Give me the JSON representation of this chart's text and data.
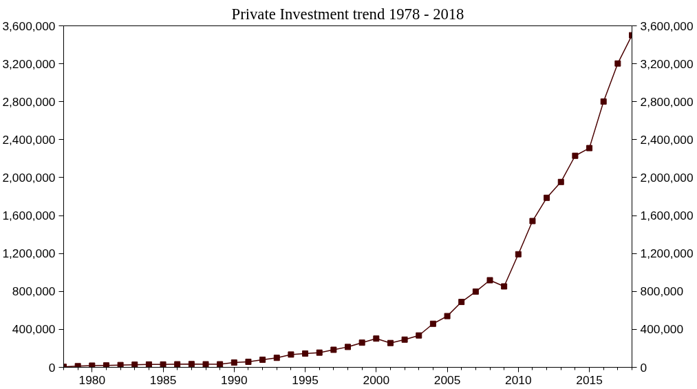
{
  "chart_data": {
    "type": "line",
    "title": "Private Investment trend 1978 - 2018",
    "x": [
      1978,
      1979,
      1980,
      1981,
      1982,
      1983,
      1984,
      1985,
      1986,
      1987,
      1988,
      1989,
      1990,
      1991,
      1992,
      1993,
      1994,
      1995,
      1996,
      1997,
      1998,
      1999,
      2000,
      2001,
      2002,
      2003,
      2004,
      2005,
      2006,
      2007,
      2008,
      2009,
      2010,
      2011,
      2012,
      2013,
      2014,
      2015,
      2016,
      2017,
      2018
    ],
    "series": [
      {
        "color": "#4a0000",
        "values": [
          5000,
          12000,
          18000,
          20000,
          24000,
          28000,
          30000,
          30000,
          32000,
          34000,
          32000,
          32000,
          50000,
          58000,
          80000,
          100000,
          135000,
          145000,
          155000,
          185000,
          215000,
          260000,
          303000,
          256000,
          292000,
          336000,
          459000,
          540000,
          689000,
          798000,
          918000,
          853000,
          1192000,
          1542000,
          1787000,
          1954000,
          2230000,
          2311000,
          2802000,
          3203000,
          3501000
        ]
      }
    ],
    "xlim": [
      1978,
      2018
    ],
    "xticks": [
      1980,
      1985,
      1990,
      1995,
      2000,
      2005,
      2010,
      2015
    ],
    "ylim": [
      0,
      3600000
    ],
    "yticks": [
      {
        "value": 0,
        "label": "0"
      },
      {
        "value": 400000,
        "label": "400,000"
      },
      {
        "value": 800000,
        "label": "800,000"
      },
      {
        "value": 1200000,
        "label": "1,200,000"
      },
      {
        "value": 1600000,
        "label": "1,600,000"
      },
      {
        "value": 2000000,
        "label": "2,000,000"
      },
      {
        "value": 2400000,
        "label": "2,400,000"
      },
      {
        "value": 2800000,
        "label": "2,800,000"
      },
      {
        "value": 3200000,
        "label": "3,200,000"
      },
      {
        "value": 3600000,
        "label": "3,600,000"
      }
    ],
    "y2lim": [
      0,
      3600000
    ],
    "y2ticks": [
      {
        "value": 0,
        "label": "0"
      },
      {
        "value": 400000,
        "label": "400,000"
      },
      {
        "value": 800000,
        "label": "800,000"
      },
      {
        "value": 1200000,
        "label": "1,200,000"
      },
      {
        "value": 1600000,
        "label": "1,600,000"
      },
      {
        "value": 2000000,
        "label": "2,000,000"
      },
      {
        "value": 2400000,
        "label": "2,400,000"
      },
      {
        "value": 2800000,
        "label": "2,800,000"
      },
      {
        "value": 3200000,
        "label": "3,200,000"
      },
      {
        "value": 3600000,
        "label": "3,600,000"
      }
    ],
    "marker": "square",
    "grid": false
  }
}
